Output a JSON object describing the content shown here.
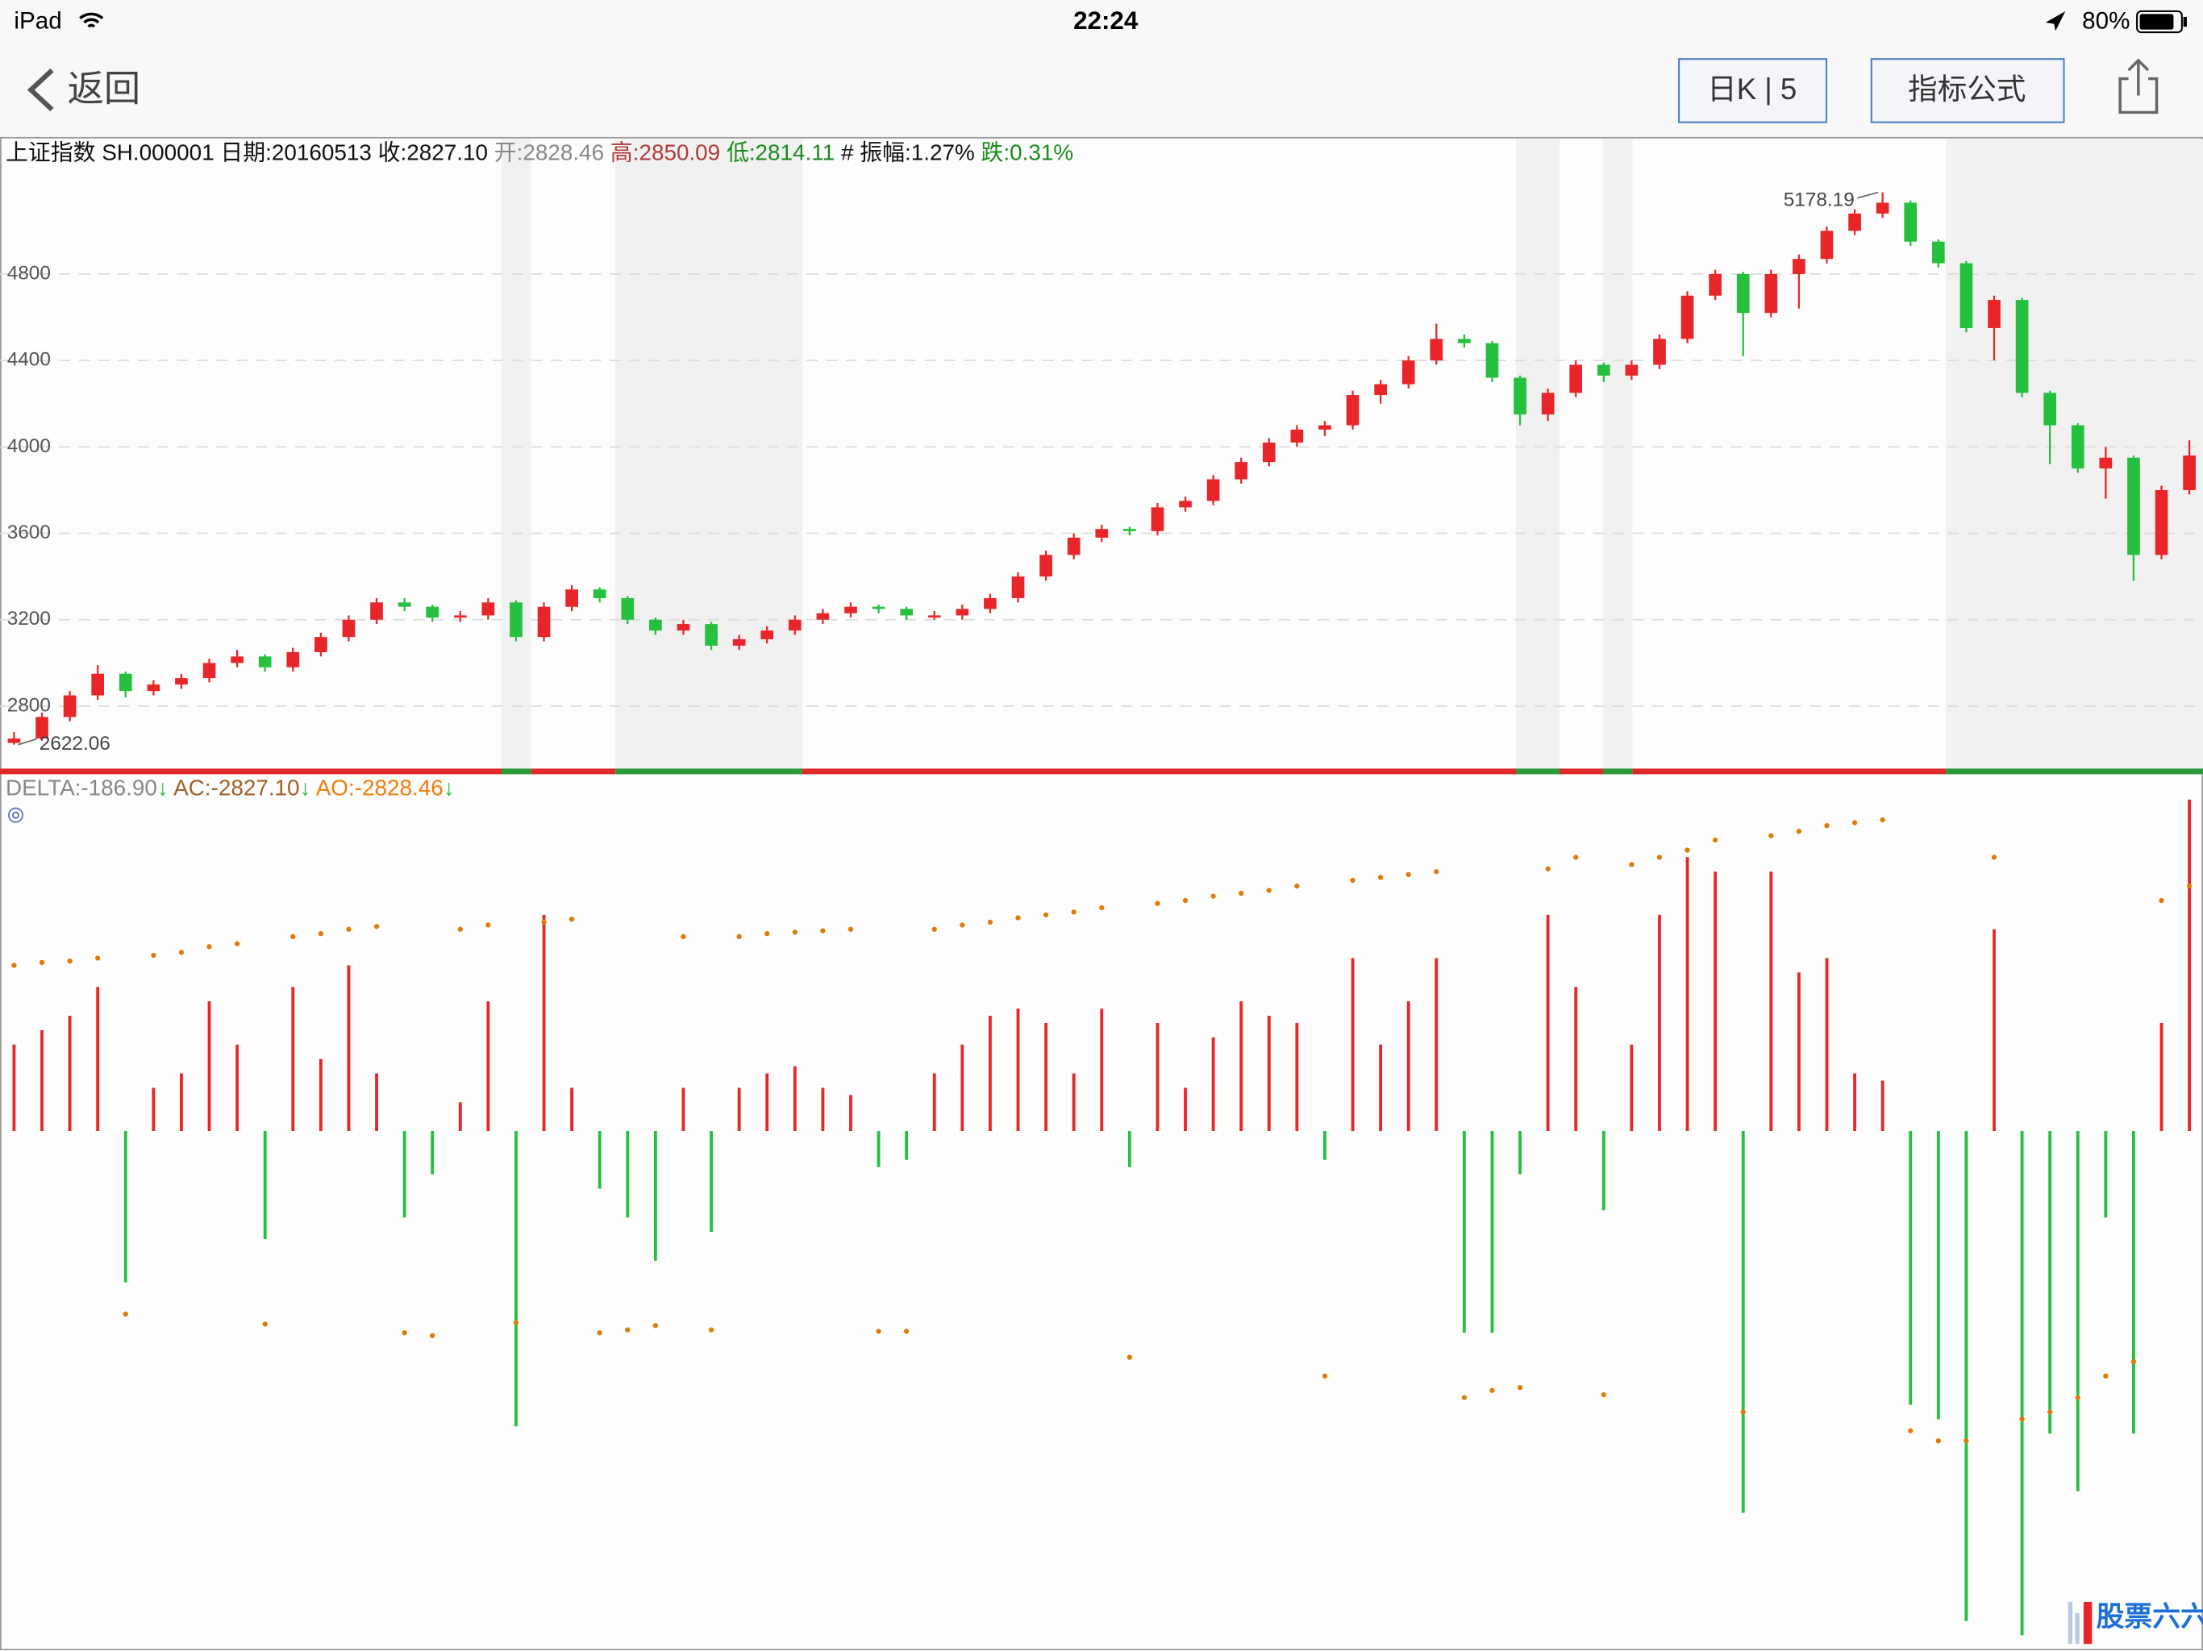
{
  "status_bar": {
    "device": "iPad",
    "time": "22:24",
    "battery": "80%"
  },
  "nav": {
    "back": "返回",
    "period_button": "日K | 5",
    "formula_button": "指标公式"
  },
  "info": [
    "上证指数 SH.000001 日期:20160513 收:2827.10 ",
    "开:2828.46 ",
    "高:2850.09 ",
    "低:2814.11 ",
    " # 振幅:1.27% ",
    "跌:0.31%"
  ],
  "indicator_legend": [
    "DELTA:-186.90",
    "↓",
    " AC:-2827.10",
    "↓",
    " AO:-2828.46",
    "↓"
  ],
  "mode_icon": "◎",
  "watermark": "股票六六",
  "chart_data": [
    {
      "type": "candlestick",
      "up_color": "#e8262a",
      "down_color": "#25c03d",
      "ylim": [
        2498,
        5418
      ],
      "yticks": [
        2800,
        3200,
        3600,
        4000,
        4400,
        4800
      ],
      "grid": true,
      "annotations": [
        "5178.19",
        "2622.06"
      ],
      "ohlc": [
        [
          2630,
          2680,
          2622.06,
          2650
        ],
        [
          2650,
          2770,
          2640,
          2750
        ],
        [
          2750,
          2870,
          2730,
          2850
        ],
        [
          2850,
          2990,
          2830,
          2950
        ],
        [
          2950,
          2960,
          2840,
          2870
        ],
        [
          2870,
          2920,
          2850,
          2900
        ],
        [
          2900,
          2950,
          2880,
          2930
        ],
        [
          2930,
          3020,
          2910,
          3000
        ],
        [
          3000,
          3060,
          2980,
          3030
        ],
        [
          3030,
          3040,
          2960,
          2980
        ],
        [
          2980,
          3070,
          2960,
          3050
        ],
        [
          3050,
          3140,
          3030,
          3120
        ],
        [
          3120,
          3220,
          3100,
          3200
        ],
        [
          3200,
          3300,
          3180,
          3280
        ],
        [
          3280,
          3300,
          3240,
          3260
        ],
        [
          3260,
          3270,
          3190,
          3210
        ],
        [
          3210,
          3240,
          3190,
          3220
        ],
        [
          3220,
          3300,
          3200,
          3280
        ],
        [
          3280,
          3290,
          3100,
          3120
        ],
        [
          3120,
          3280,
          3100,
          3260
        ],
        [
          3260,
          3360,
          3240,
          3340
        ],
        [
          3340,
          3350,
          3280,
          3300
        ],
        [
          3300,
          3310,
          3180,
          3200
        ],
        [
          3200,
          3210,
          3130,
          3150
        ],
        [
          3150,
          3200,
          3130,
          3180
        ],
        [
          3180,
          3190,
          3060,
          3080
        ],
        [
          3080,
          3130,
          3060,
          3110
        ],
        [
          3110,
          3170,
          3090,
          3150
        ],
        [
          3150,
          3220,
          3130,
          3200
        ],
        [
          3200,
          3250,
          3180,
          3230
        ],
        [
          3230,
          3280,
          3210,
          3260
        ],
        [
          3260,
          3270,
          3230,
          3250
        ],
        [
          3250,
          3260,
          3200,
          3220
        ],
        [
          3220,
          3240,
          3200,
          3220
        ],
        [
          3220,
          3270,
          3200,
          3250
        ],
        [
          3250,
          3320,
          3230,
          3300
        ],
        [
          3300,
          3420,
          3280,
          3400
        ],
        [
          3400,
          3520,
          3380,
          3500
        ],
        [
          3500,
          3600,
          3480,
          3580
        ],
        [
          3580,
          3640,
          3560,
          3620
        ],
        [
          3620,
          3630,
          3590,
          3610
        ],
        [
          3610,
          3740,
          3590,
          3720
        ],
        [
          3720,
          3770,
          3700,
          3750
        ],
        [
          3750,
          3870,
          3730,
          3850
        ],
        [
          3850,
          3950,
          3830,
          3930
        ],
        [
          3930,
          4040,
          3910,
          4020
        ],
        [
          4020,
          4100,
          4000,
          4080
        ],
        [
          4080,
          4120,
          4050,
          4100
        ],
        [
          4100,
          4260,
          4080,
          4240
        ],
        [
          4240,
          4310,
          4200,
          4290
        ],
        [
          4290,
          4420,
          4270,
          4400
        ],
        [
          4400,
          4570,
          4380,
          4500
        ],
        [
          4500,
          4520,
          4460,
          4480
        ],
        [
          4480,
          4490,
          4300,
          4320
        ],
        [
          4320,
          4330,
          4100,
          4150
        ],
        [
          4150,
          4270,
          4120,
          4250
        ],
        [
          4250,
          4400,
          4230,
          4380
        ],
        [
          4380,
          4390,
          4300,
          4330
        ],
        [
          4330,
          4400,
          4310,
          4380
        ],
        [
          4380,
          4520,
          4360,
          4500
        ],
        [
          4500,
          4720,
          4480,
          4700
        ],
        [
          4700,
          4820,
          4680,
          4800
        ],
        [
          4800,
          4810,
          4420,
          4620
        ],
        [
          4620,
          4820,
          4600,
          4800
        ],
        [
          4800,
          4890,
          4640,
          4870
        ],
        [
          4870,
          5020,
          4850,
          5000
        ],
        [
          5000,
          5100,
          4980,
          5080
        ],
        [
          5080,
          5178.19,
          5060,
          5130
        ],
        [
          5130,
          5140,
          4930,
          4950
        ],
        [
          4950,
          4960,
          4830,
          4850
        ],
        [
          4850,
          4860,
          4530,
          4550
        ],
        [
          4550,
          4700,
          4400,
          4680
        ],
        [
          4680,
          4690,
          4230,
          4250
        ],
        [
          4250,
          4260,
          3920,
          4100
        ],
        [
          4100,
          4110,
          3880,
          3900
        ],
        [
          3900,
          4000,
          3760,
          3950
        ],
        [
          3950,
          3960,
          3380,
          3500
        ],
        [
          3500,
          3820,
          3480,
          3800
        ],
        [
          3800,
          4030,
          3780,
          3960
        ]
      ]
    },
    {
      "type": "bar",
      "ylim": [
        -356,
        234
      ],
      "series": [
        {
          "type": "bar",
          "up_color": "#e8262a",
          "down_color": "#25c03d",
          "values": [
            60,
            70,
            80,
            100,
            -105,
            30,
            40,
            90,
            60,
            -75,
            100,
            50,
            115,
            40,
            -60,
            -30,
            20,
            90,
            -205,
            150,
            30,
            -40,
            -60,
            -90,
            30,
            -70,
            30,
            40,
            45,
            30,
            25,
            -25,
            -20,
            40,
            60,
            80,
            85,
            75,
            40,
            85,
            -25,
            75,
            30,
            65,
            90,
            80,
            75,
            -20,
            120,
            60,
            90,
            120,
            -140,
            -140,
            -30,
            150,
            100,
            -55,
            60,
            150,
            190,
            180,
            -265,
            180,
            110,
            120,
            40,
            35,
            -190,
            -200,
            -340,
            140,
            -350,
            -210,
            -250,
            -60,
            -210,
            75,
            230
          ]
        },
        {
          "type": "dot",
          "color": "#e07b0a",
          "values": [
            115,
            117,
            118,
            120,
            -127,
            122,
            124,
            128,
            130,
            -134,
            135,
            137,
            140,
            142,
            -140,
            -142,
            140,
            143,
            -133,
            145,
            147,
            -140,
            -138,
            -135,
            135,
            -138,
            135,
            137,
            138,
            139,
            140,
            -139,
            -139,
            140,
            143,
            145,
            148,
            150,
            152,
            155,
            -157,
            158,
            160,
            163,
            165,
            167,
            170,
            -170,
            174,
            176,
            178,
            180,
            -185,
            -180,
            -178,
            182,
            190,
            -183,
            185,
            190,
            195,
            202,
            -195,
            205,
            208,
            212,
            214,
            216,
            -208,
            -215,
            -215,
            190,
            -200,
            -195,
            -185,
            -170,
            -160,
            160,
            170
          ]
        }
      ]
    }
  ]
}
